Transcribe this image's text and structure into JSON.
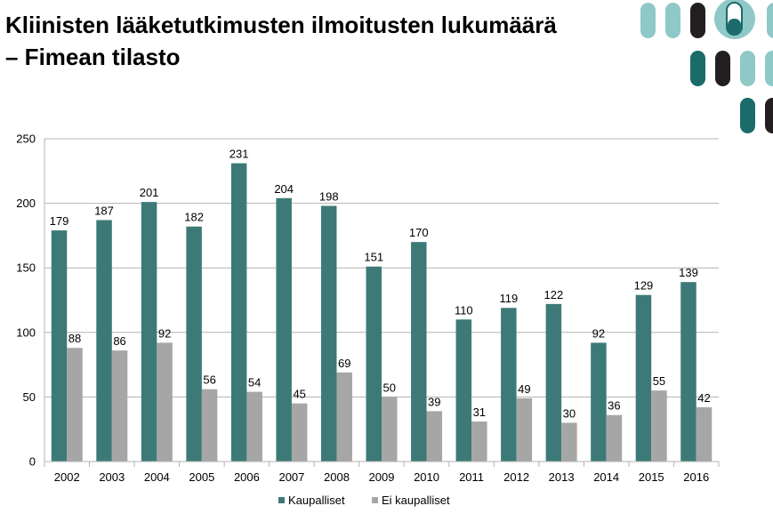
{
  "title": {
    "line1": "Kliinisten lääketutkimusten ilmoitusten lukumäärä",
    "line2": "– Fimean tilasto"
  },
  "colors": {
    "kaupalliset": "#3d7a77",
    "ei_kaupalliset": "#a6a6a6",
    "grid": "#b3b3b3",
    "logo_light": "#8ec9c8",
    "logo_dark": "#1c6b6b",
    "logo_black": "#231f20"
  },
  "chart_data": {
    "type": "bar",
    "title": "",
    "xlabel": "",
    "ylabel": "",
    "ylim": [
      0,
      250
    ],
    "yticks": [
      0,
      50,
      100,
      150,
      200,
      250
    ],
    "grid": true,
    "legend_position": "bottom",
    "categories": [
      "2002",
      "2003",
      "2004",
      "2005",
      "2006",
      "2007",
      "2008",
      "2009",
      "2010",
      "2011",
      "2012",
      "2013",
      "2014",
      "2015",
      "2016"
    ],
    "series": [
      {
        "name": "Kaupalliset",
        "values": [
          179,
          187,
          201,
          182,
          231,
          204,
          198,
          151,
          170,
          110,
          119,
          122,
          92,
          129,
          139
        ]
      },
      {
        "name": "Ei kaupalliset",
        "values": [
          88,
          86,
          92,
          56,
          54,
          45,
          69,
          50,
          39,
          31,
          49,
          30,
          36,
          55,
          42
        ]
      }
    ]
  }
}
